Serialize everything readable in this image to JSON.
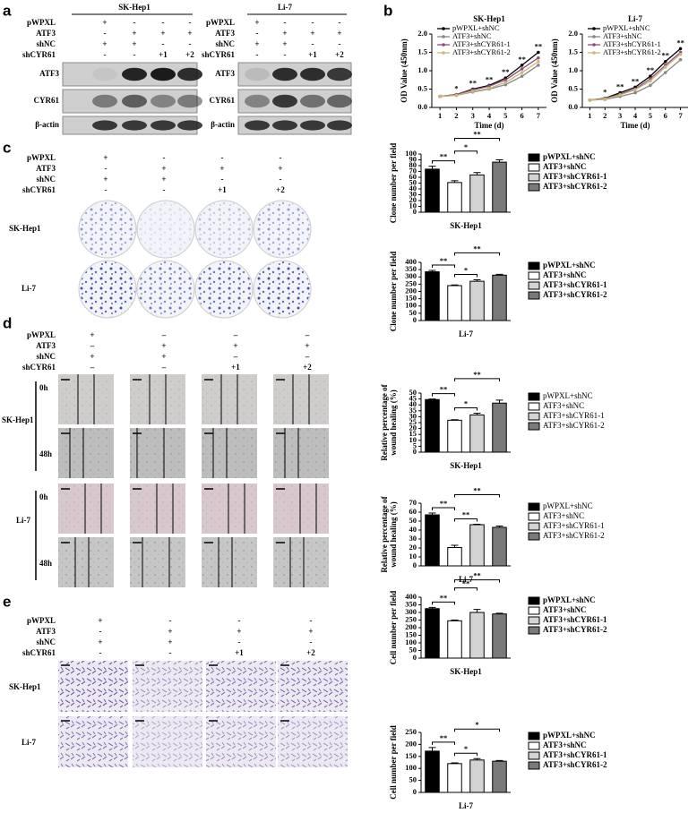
{
  "panel_letters": [
    "a",
    "b",
    "c",
    "d",
    "e"
  ],
  "blot": {
    "groups": [
      {
        "cell_line": "SK-Hep1",
        "conditions": [
          [
            "pWPXL",
            "+",
            "-",
            "-",
            "-"
          ],
          [
            "ATF3",
            "-",
            "+",
            "+",
            "+"
          ],
          [
            "shNC",
            "+",
            "+",
            "-",
            "-"
          ],
          [
            "shCYR61",
            "-",
            "-",
            "+1",
            "+2"
          ]
        ],
        "bands": [
          "ATF3",
          "CYR61",
          "β-actin"
        ]
      },
      {
        "cell_line": "Li-7",
        "conditions": [
          [
            "pWPXL",
            "+",
            "-",
            "-",
            "-"
          ],
          [
            "ATF3",
            "-",
            "+",
            "+",
            "+"
          ],
          [
            "shNC",
            "+",
            "+",
            "-",
            "-"
          ],
          [
            "shCYR61",
            "-",
            "-",
            "+1",
            "+2"
          ]
        ],
        "bands": [
          "ATF3",
          "CYR61",
          "β-actin"
        ]
      }
    ]
  },
  "colony": {
    "conditions": [
      [
        "pWPXL",
        "+",
        "-",
        "-",
        "-"
      ],
      [
        "ATF3",
        "-",
        "+",
        "+",
        "+"
      ],
      [
        "shNC",
        "+",
        "+",
        "-",
        "-"
      ],
      [
        "shCYR61",
        "-",
        "-",
        "+1",
        "+2"
      ]
    ],
    "rows": [
      "SK-Hep1",
      "Li-7"
    ]
  },
  "wound": {
    "conditions": [
      [
        "pWPXL",
        "+",
        "–",
        "–",
        "–"
      ],
      [
        "ATF3",
        "–",
        "+",
        "+",
        "+"
      ],
      [
        "shNC",
        "+",
        "+",
        "–",
        "–"
      ],
      [
        "shCYR61",
        "–",
        "–",
        "+1",
        "+2"
      ]
    ],
    "rows": [
      "SK-Hep1",
      "Li-7"
    ],
    "timepoints": [
      "0h",
      "48h"
    ]
  },
  "transwell": {
    "conditions": [
      [
        "pWPXL",
        "+",
        "-",
        "-",
        "-"
      ],
      [
        "ATF3",
        "-",
        "+",
        "+",
        "+"
      ],
      [
        "shNC",
        "+",
        "+",
        "-",
        "-"
      ],
      [
        "shCYR61",
        "-",
        "-",
        "+1",
        "+2"
      ]
    ],
    "rows": [
      "SK-Hep1",
      "Li-7"
    ]
  },
  "chart_data": [
    {
      "type": "line",
      "title": "SK-Hep1",
      "x_label": "Time (d)",
      "y_label": [
        "OD Value (450nm)"
      ],
      "x": [
        1,
        2,
        3,
        4,
        5,
        6,
        7
      ],
      "xlim": [
        0.5,
        7.5
      ],
      "xticks": [
        1,
        2,
        3,
        4,
        5,
        6,
        7
      ],
      "ylim": [
        0,
        2
      ],
      "yticks": [
        {
          "value": 0,
          "label": "0.0"
        },
        {
          "value": 0.5,
          "label": "0.5"
        },
        {
          "value": 1,
          "label": "1.0"
        },
        {
          "value": 1.5,
          "label": "1.5"
        },
        {
          "value": 2,
          "label": "2.0"
        }
      ],
      "series": [
        {
          "name": "pWPXL+shNC",
          "color": "#000000",
          "values": [
            0.3,
            0.35,
            0.5,
            0.6,
            0.8,
            1.15,
            1.5
          ]
        },
        {
          "name": "ATF3+shNC",
          "color": "#888888",
          "values": [
            0.3,
            0.33,
            0.42,
            0.5,
            0.62,
            0.85,
            1.15
          ]
        },
        {
          "name": "ATF3+shCYR61-1",
          "color": "#8b4f7a",
          "values": [
            0.3,
            0.35,
            0.48,
            0.58,
            0.75,
            1.05,
            1.35
          ]
        },
        {
          "name": "ATF3+shCYR61-2",
          "color": "#c9b779",
          "values": [
            0.3,
            0.33,
            0.44,
            0.52,
            0.68,
            0.95,
            1.25
          ]
        }
      ],
      "annotations": [
        {
          "text": "*",
          "x": 2
        },
        {
          "text": "**",
          "x": 3
        },
        {
          "text": "**",
          "x": 4
        },
        {
          "text": "**",
          "x": 5
        },
        {
          "text": "**",
          "x": 6
        },
        {
          "text": "**",
          "x": 7
        }
      ]
    },
    {
      "type": "line",
      "title": "Li-7",
      "x_label": "Time (d)",
      "y_label": [
        "OD Value (450nm)"
      ],
      "x": [
        1,
        2,
        3,
        4,
        5,
        6,
        7
      ],
      "xlim": [
        0.5,
        7.5
      ],
      "xticks": [
        1,
        2,
        3,
        4,
        5,
        6,
        7
      ],
      "ylim": [
        0,
        2
      ],
      "yticks": [
        {
          "value": 0,
          "label": "0.0"
        },
        {
          "value": 0.5,
          "label": "0.5"
        },
        {
          "value": 1,
          "label": "1.0"
        },
        {
          "value": 1.5,
          "label": "1.5"
        },
        {
          "value": 2,
          "label": "2.0"
        }
      ],
      "series": [
        {
          "name": "pWPXL+shNC",
          "color": "#000000",
          "values": [
            0.2,
            0.25,
            0.4,
            0.55,
            0.85,
            1.25,
            1.6
          ]
        },
        {
          "name": "ATF3+shNC",
          "color": "#888888",
          "values": [
            0.2,
            0.22,
            0.3,
            0.4,
            0.6,
            0.95,
            1.3
          ]
        },
        {
          "name": "ATF3+shCYR61-1",
          "color": "#8b4f7a",
          "values": [
            0.2,
            0.24,
            0.36,
            0.5,
            0.78,
            1.15,
            1.5
          ]
        },
        {
          "name": "ATF3+shCYR61-2",
          "color": "#c9b779",
          "values": [
            0.2,
            0.23,
            0.34,
            0.48,
            0.72,
            1.1,
            1.45
          ]
        }
      ],
      "annotations": [
        {
          "text": "*",
          "x": 2
        },
        {
          "text": "**",
          "x": 3
        },
        {
          "text": "**",
          "x": 4
        },
        {
          "text": "**",
          "x": 5
        },
        {
          "text": "**",
          "x": 6
        },
        {
          "text": "**",
          "x": 7
        }
      ]
    },
    {
      "type": "bar",
      "x_label": "SK-Hep1",
      "y_label": [
        "Clone number per field"
      ],
      "legend_bold": true,
      "categories": [
        "pWPXL+shNC",
        "ATF3+shNC",
        "ATF3+shCYR61-1",
        "ATF3+shCYR61-2"
      ],
      "colors": [
        "#000000",
        "#ffffff",
        "#d4d4d4",
        "#7a7a7a"
      ],
      "values": [
        74,
        51,
        64,
        86
      ],
      "errors": [
        5,
        3,
        4,
        4
      ],
      "ylim": [
        0,
        100
      ],
      "yticks": [
        0,
        10,
        20,
        30,
        40,
        50,
        60,
        70,
        80,
        90,
        100
      ],
      "comparisons": [
        {
          "text": "**",
          "between": [
            "pWPXL+shNC",
            "ATF3+shNC"
          ]
        },
        {
          "text": "*",
          "between": [
            "ATF3+shNC",
            "ATF3+shCYR61-1"
          ]
        },
        {
          "text": "**",
          "between": [
            "ATF3+shNC",
            "ATF3+shCYR61-2"
          ]
        }
      ]
    },
    {
      "type": "bar",
      "x_label": "Li-7",
      "y_label": [
        "Clone number per field"
      ],
      "legend_bold": true,
      "categories": [
        "pWPXL+shNC",
        "ATF3+shNC",
        "ATF3+shCYR61-1",
        "ATF3+shCYR61-2"
      ],
      "colors": [
        "#000000",
        "#ffffff",
        "#d4d4d4",
        "#7a7a7a"
      ],
      "values": [
        335,
        240,
        270,
        312
      ],
      "errors": [
        10,
        5,
        10,
        6
      ],
      "ylim": [
        0,
        400
      ],
      "yticks": [
        0,
        50,
        100,
        150,
        200,
        250,
        300,
        350,
        400
      ],
      "comparisons": [
        {
          "text": "**",
          "between": [
            "pWPXL+shNC",
            "ATF3+shNC"
          ]
        },
        {
          "text": "*",
          "between": [
            "ATF3+shNC",
            "ATF3+shCYR61-1"
          ]
        },
        {
          "text": "**",
          "between": [
            "ATF3+shNC",
            "ATF3+shCYR61-2"
          ]
        }
      ]
    },
    {
      "type": "bar",
      "x_label": "SK-Hep1",
      "y_label": [
        "Relative percentage of",
        "wound healing (%)"
      ],
      "legend_bold": false,
      "categories": [
        "pWPXL+shNC",
        "ATF3+shNC",
        "ATF3+shCYR61-1",
        "ATF3+shCYR61-2"
      ],
      "colors": [
        "#000000",
        "#ffffff",
        "#d4d4d4",
        "#7a7a7a"
      ],
      "values": [
        44.5,
        27,
        31.5,
        41.5
      ],
      "errors": [
        0.5,
        0.5,
        1.5,
        2.5
      ],
      "ylim": [
        0,
        50
      ],
      "yticks": [
        0,
        5,
        10,
        15,
        20,
        25,
        30,
        35,
        40,
        45,
        50
      ],
      "comparisons": [
        {
          "text": "**",
          "between": [
            "pWPXL+shNC",
            "ATF3+shNC"
          ]
        },
        {
          "text": "*",
          "between": [
            "ATF3+shNC",
            "ATF3+shCYR61-1"
          ]
        },
        {
          "text": "**",
          "between": [
            "ATF3+shNC",
            "ATF3+shCYR61-2"
          ]
        }
      ]
    },
    {
      "type": "bar",
      "x_label": "Li-7",
      "y_label": [
        "Relative percentage of",
        "wound healing (%)"
      ],
      "legend_bold": false,
      "categories": [
        "pWPXL+shNC",
        "ATF3+shNC",
        "ATF3+shCYR61-1",
        "ATF3+shCYR61-2"
      ],
      "colors": [
        "#000000",
        "#ffffff",
        "#d4d4d4",
        "#7a7a7a"
      ],
      "values": [
        57,
        20.5,
        46,
        43
      ],
      "errors": [
        2,
        2.5,
        0.5,
        1.5
      ],
      "ylim": [
        0,
        70
      ],
      "yticks": [
        0,
        10,
        20,
        30,
        40,
        50,
        60,
        70
      ],
      "comparisons": [
        {
          "text": "**",
          "between": [
            "pWPXL+shNC",
            "ATF3+shNC"
          ]
        },
        {
          "text": "**",
          "between": [
            "ATF3+shNC",
            "ATF3+shCYR61-1"
          ]
        },
        {
          "text": "**",
          "between": [
            "ATF3+shNC",
            "ATF3+shCYR61-2"
          ]
        }
      ]
    },
    {
      "type": "bar",
      "x_label": "SK-Hep1",
      "y_label": [
        "Cell number per field"
      ],
      "legend_bold": true,
      "categories": [
        "pWPXL+shNC",
        "ATF3+shNC",
        "ATF3+shCYR61-1",
        "ATF3+shCYR61-2"
      ],
      "colors": [
        "#000000",
        "#ffffff",
        "#d4d4d4",
        "#7a7a7a"
      ],
      "values": [
        325,
        245,
        300,
        290
      ],
      "errors": [
        8,
        5,
        20,
        5
      ],
      "ylim": [
        0,
        400
      ],
      "yticks": [
        0,
        50,
        100,
        150,
        200,
        250,
        300,
        350,
        400
      ],
      "comparisons": [
        {
          "text": "**",
          "between": [
            "pWPXL+shNC",
            "ATF3+shNC"
          ]
        },
        {
          "text": "**",
          "between": [
            "ATF3+shNC",
            "ATF3+shCYR61-1"
          ]
        },
        {
          "text": "**",
          "between": [
            "ATF3+shNC",
            "ATF3+shCYR61-2"
          ]
        }
      ]
    },
    {
      "type": "bar",
      "x_label": "Li-7",
      "y_label": [
        "Cell number per field"
      ],
      "legend_bold": true,
      "categories": [
        "pWPXL+shNC",
        "ATF3+shNC",
        "ATF3+shCYR61-1",
        "ATF3+shCYR61-2"
      ],
      "colors": [
        "#000000",
        "#ffffff",
        "#d4d4d4",
        "#7a7a7a"
      ],
      "values": [
        172,
        120,
        135,
        130
      ],
      "errors": [
        15,
        3,
        6,
        3
      ],
      "ylim": [
        0,
        250
      ],
      "yticks": [
        0,
        50,
        100,
        150,
        200,
        250
      ],
      "comparisons": [
        {
          "text": "**",
          "between": [
            "pWPXL+shNC",
            "ATF3+shNC"
          ]
        },
        {
          "text": "*",
          "between": [
            "ATF3+shNC",
            "ATF3+shCYR61-1"
          ]
        },
        {
          "text": "*",
          "between": [
            "ATF3+shNC",
            "ATF3+shCYR61-2"
          ]
        }
      ]
    }
  ]
}
